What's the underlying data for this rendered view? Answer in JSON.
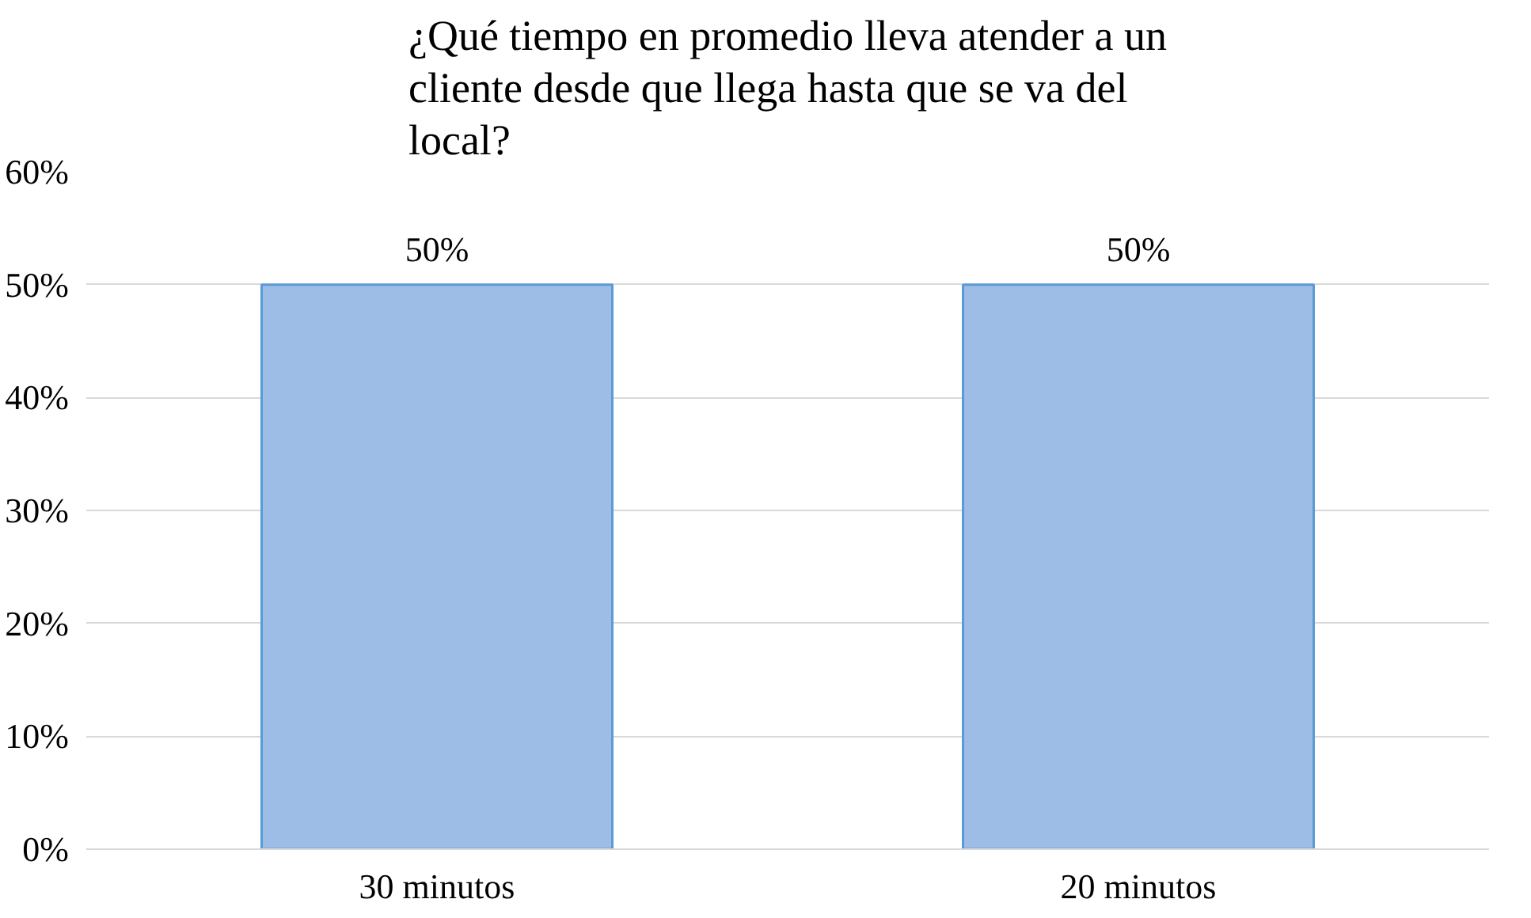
{
  "chart_data": {
    "type": "bar",
    "title": "¿Qué tiempo en promedio lleva atender a un cliente desde que llega hasta que se va del local?",
    "categories": [
      "30 minutos",
      "20 minutos"
    ],
    "values": [
      50,
      50
    ],
    "value_labels": [
      "50%",
      "50%"
    ],
    "color": "#9dbde6",
    "ylim": [
      0,
      60
    ],
    "yticks": [
      {
        "value": 0,
        "label": "0%"
      },
      {
        "value": 10,
        "label": "10%"
      },
      {
        "value": 20,
        "label": "20%"
      },
      {
        "value": 30,
        "label": "30%"
      },
      {
        "value": 40,
        "label": "40%"
      },
      {
        "value": 50,
        "label": "50%"
      },
      {
        "value": 60,
        "label": "60%"
      }
    ],
    "grid": "y"
  }
}
